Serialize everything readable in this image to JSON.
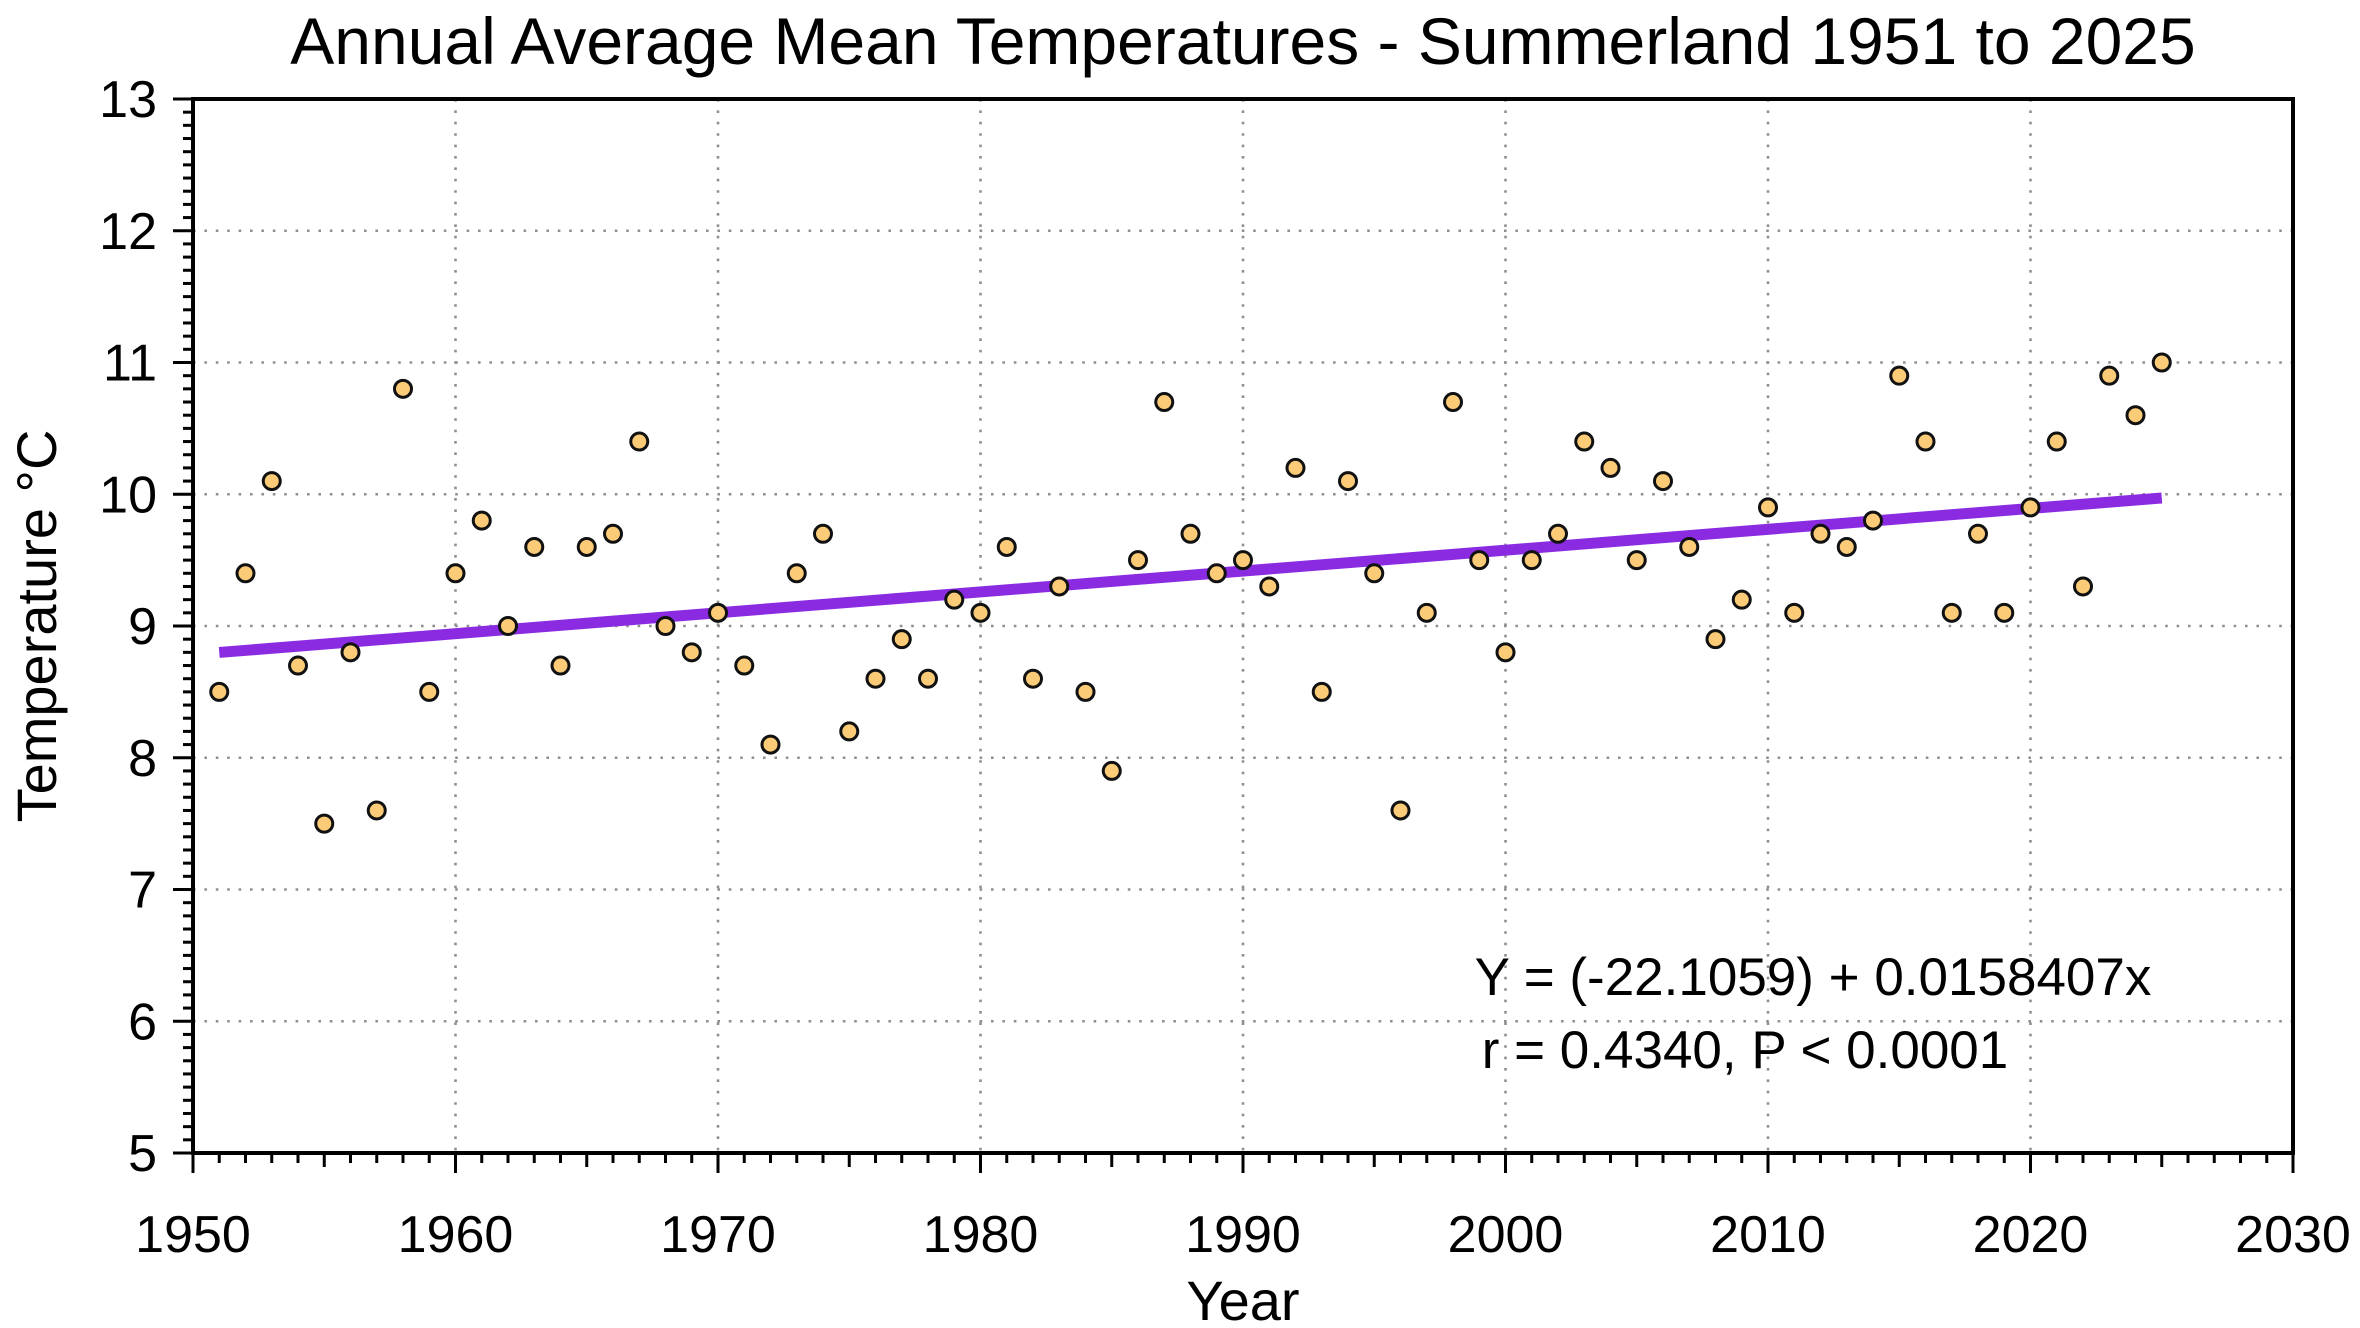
{
  "chart_data": {
    "type": "scatter",
    "title": "Annual Average Mean Temperatures - Summerland 1951 to 2025",
    "xlabel": "Year",
    "ylabel": "Temperature °C",
    "xlim": [
      1950,
      2030
    ],
    "ylim": [
      5,
      13
    ],
    "x_major_ticks": [
      1950,
      1960,
      1970,
      1980,
      1990,
      2000,
      2010,
      2020,
      2030
    ],
    "y_major_ticks": [
      5,
      6,
      7,
      8,
      9,
      10,
      11,
      12,
      13
    ],
    "x_minor_step": 1,
    "x_medium_step": 5,
    "y_minor_step": 0.1,
    "grid": {
      "style": "dotted",
      "color": "#8f8f8f",
      "x_at": [
        1960,
        1970,
        1980,
        1990,
        2000,
        2010,
        2020
      ],
      "y_at": [
        6,
        7,
        8,
        9,
        10,
        11,
        12
      ]
    },
    "series": [
      {
        "name": "annual-average-mean-temperature",
        "marker": {
          "shape": "circle",
          "fill": "#fbcb78",
          "stroke": "#111111"
        },
        "x": [
          1951,
          1952,
          1953,
          1954,
          1955,
          1956,
          1957,
          1958,
          1959,
          1960,
          1961,
          1962,
          1963,
          1964,
          1965,
          1966,
          1967,
          1968,
          1969,
          1970,
          1971,
          1972,
          1973,
          1974,
          1975,
          1976,
          1977,
          1978,
          1979,
          1980,
          1981,
          1982,
          1983,
          1984,
          1985,
          1986,
          1987,
          1988,
          1989,
          1990,
          1991,
          1992,
          1993,
          1994,
          1995,
          1996,
          1997,
          1998,
          1999,
          2000,
          2001,
          2002,
          2003,
          2004,
          2005,
          2006,
          2007,
          2008,
          2009,
          2010,
          2011,
          2012,
          2013,
          2014,
          2015,
          2016,
          2017,
          2018,
          2019,
          2020,
          2021,
          2022,
          2023,
          2024,
          2025
        ],
        "y": [
          8.5,
          9.4,
          10.1,
          8.7,
          7.5,
          8.8,
          7.6,
          10.8,
          8.5,
          9.4,
          9.8,
          9.0,
          9.6,
          8.7,
          9.6,
          9.7,
          10.4,
          9.0,
          8.8,
          9.1,
          8.7,
          8.1,
          9.4,
          9.7,
          8.2,
          8.6,
          8.9,
          8.6,
          9.2,
          9.1,
          9.6,
          8.6,
          9.3,
          8.5,
          7.9,
          9.5,
          10.7,
          9.7,
          9.4,
          9.5,
          9.3,
          10.2,
          8.5,
          10.1,
          9.4,
          7.6,
          9.1,
          10.7,
          9.5,
          8.8,
          9.5,
          9.7,
          10.4,
          10.2,
          9.5,
          10.1,
          9.6,
          8.9,
          9.2,
          9.9,
          9.1,
          9.7,
          9.6,
          9.8,
          10.9,
          10.4,
          9.1,
          9.7,
          9.1,
          9.9,
          10.4,
          9.3,
          10.9,
          10.6,
          11.0
        ]
      }
    ],
    "trendline": {
      "slope": 0.0158407,
      "intercept": -22.1059,
      "x_start": 1951,
      "x_end": 2025,
      "color": "#8a2be2",
      "width": 11,
      "equation_label": "Y = (-22.1059) + 0.0158407x",
      "stats_label": "r = 0.4340, P < 0.0001",
      "label_color": "#9a49e8"
    }
  }
}
